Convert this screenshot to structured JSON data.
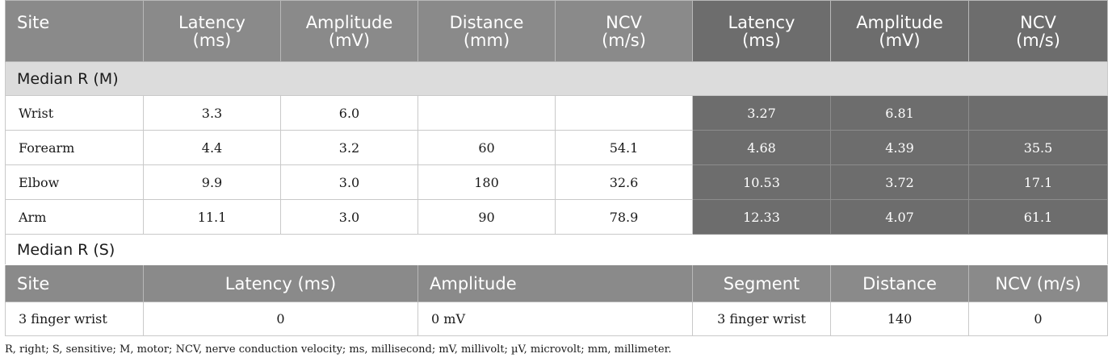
{
  "motor_header": {
    "site": "Site",
    "cols": [
      "Latency\n(ms)",
      "Amplitude\n(mV)",
      "Distance\n(mm)",
      "NCV\n(m/s)",
      "Latency\n(ms)",
      "Amplitude\n(mV)",
      "NCV\n(m/s)"
    ]
  },
  "motor_section_label": "Median R (M)",
  "motor_rows": [
    {
      "site": "Wrist",
      "latency": "3.3",
      "amplitude": "6.0",
      "distance": "",
      "ncv": "",
      "latency2": "3.27",
      "amplitude2": "6.81",
      "ncv2": ""
    },
    {
      "site": "Forearm",
      "latency": "4.4",
      "amplitude": "3.2",
      "distance": "60",
      "ncv": "54.1",
      "latency2": "4.68",
      "amplitude2": "4.39",
      "ncv2": "35.5"
    },
    {
      "site": "Elbow",
      "latency": "9.9",
      "amplitude": "3.0",
      "distance": "180",
      "ncv": "32.6",
      "latency2": "10.53",
      "amplitude2": "3.72",
      "ncv2": "17.1"
    },
    {
      "site": "Arm",
      "latency": "11.1",
      "amplitude": "3.0",
      "distance": "90",
      "ncv": "78.9",
      "latency2": "12.33",
      "amplitude2": "4.07",
      "ncv2": "61.1"
    }
  ],
  "sensory_section_label": "Median R (S)",
  "sensory_header": {
    "site": "Site",
    "latency": "Latency (ms)",
    "amplitude": "Amplitude",
    "segment": "Segment",
    "distance": "Distance",
    "ncv": "NCV (m/s)"
  },
  "sensory_rows": [
    {
      "site": "3 finger wrist",
      "latency": "0",
      "amplitude": "0 mV",
      "segment": "3 finger wrist",
      "distance": "140",
      "ncv": "0"
    }
  ],
  "footnote": "R, right; S, sensitive; M, motor; NCV, nerve conduction velocity; ms, millisecond; mV, millivolt; µV, microvolt; mm, millimeter."
}
